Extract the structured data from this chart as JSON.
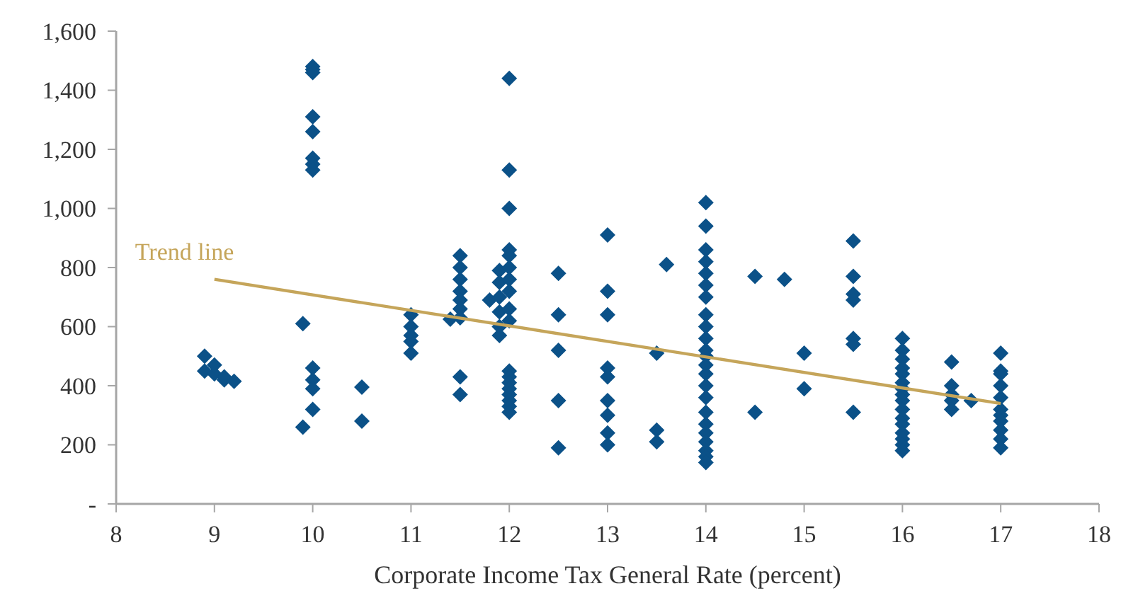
{
  "chart_data": {
    "type": "scatter",
    "xlabel": "Corporate Income Tax General Rate (percent)",
    "xlim": [
      8,
      18
    ],
    "xticks": [
      8,
      9,
      10,
      11,
      12,
      13,
      14,
      15,
      16,
      17,
      18
    ],
    "ylim": [
      0,
      1600
    ],
    "yticks": [
      {
        "value": 0,
        "label": "-"
      },
      200,
      400,
      {
        "value": 600,
        "label": "600"
      },
      800,
      {
        "value": 1000,
        "label": "1,000"
      },
      {
        "value": 1200,
        "label": "1,200"
      },
      {
        "value": 1400,
        "label": "1,400"
      },
      {
        "value": 1600,
        "label": "1,600"
      }
    ],
    "grid": false,
    "legend": false,
    "series": [
      {
        "color": "#0b5188",
        "marker": "diamond",
        "x": [
          8.9,
          8.9,
          9,
          9,
          9.1,
          9.1,
          9.2,
          9.9,
          9.9,
          10,
          10,
          10,
          10,
          10,
          10,
          10,
          10,
          10,
          10,
          10,
          10,
          10.5,
          10.5,
          11,
          11,
          11,
          11,
          11,
          11.4,
          11.5,
          11.5,
          11.5,
          11.5,
          11.5,
          11.5,
          11.5,
          11.5,
          11.5,
          11.8,
          11.9,
          11.9,
          11.9,
          11.9,
          11.9,
          11.9,
          12,
          12,
          12,
          12,
          12,
          12,
          12,
          12,
          12,
          12,
          12,
          12,
          12,
          12,
          12,
          12,
          12,
          12,
          12.5,
          12.5,
          12.5,
          12.5,
          12.5,
          13,
          13,
          13,
          13,
          13,
          13,
          13,
          13,
          13,
          13.5,
          13.5,
          13.5,
          13.6,
          14,
          14,
          14,
          14,
          14,
          14,
          14,
          14,
          14,
          14,
          14,
          14,
          14,
          14,
          14,
          14,
          14,
          14,
          14,
          14,
          14,
          14,
          14,
          14.5,
          14.5,
          14.8,
          15,
          15,
          15.5,
          15.5,
          15.5,
          15.5,
          15.5,
          15.5,
          15.5,
          16,
          16,
          16,
          16,
          16,
          16,
          16,
          16,
          16,
          16,
          16,
          16,
          16,
          16,
          16,
          16,
          16.5,
          16.5,
          16.5,
          16.5,
          16.5,
          16.7,
          17,
          17,
          17,
          17,
          17,
          17,
          17,
          17,
          17,
          17,
          17
        ],
        "values": [
          500,
          450,
          440,
          470,
          420,
          430,
          415,
          610,
          260,
          1480,
          1470,
          1460,
          1310,
          1260,
          1170,
          1150,
          1130,
          460,
          420,
          390,
          320,
          395,
          280,
          640,
          600,
          570,
          550,
          510,
          625,
          840,
          800,
          760,
          720,
          690,
          660,
          630,
          430,
          370,
          690,
          790,
          750,
          700,
          650,
          600,
          570,
          1440,
          1130,
          1000,
          860,
          840,
          800,
          760,
          720,
          660,
          620,
          450,
          430,
          410,
          390,
          370,
          350,
          330,
          310,
          780,
          640,
          520,
          350,
          190,
          910,
          720,
          640,
          460,
          430,
          350,
          300,
          240,
          200,
          510,
          250,
          210,
          810,
          1020,
          940,
          860,
          820,
          780,
          740,
          700,
          640,
          600,
          560,
          520,
          500,
          470,
          440,
          400,
          360,
          310,
          270,
          240,
          210,
          180,
          160,
          140,
          770,
          310,
          760,
          510,
          390,
          890,
          770,
          710,
          690,
          560,
          540,
          310,
          560,
          520,
          490,
          460,
          440,
          410,
          390,
          370,
          350,
          320,
          290,
          270,
          240,
          220,
          200,
          180,
          480,
          400,
          370,
          350,
          320,
          350,
          510,
          450,
          440,
          400,
          360,
          320,
          300,
          280,
          250,
          220,
          190
        ]
      },
      {
        "type": "line",
        "marker": "none",
        "name": "Trend line",
        "color": "#c5a55a",
        "x": [
          9,
          17
        ],
        "values": [
          760,
          340
        ]
      }
    ]
  }
}
